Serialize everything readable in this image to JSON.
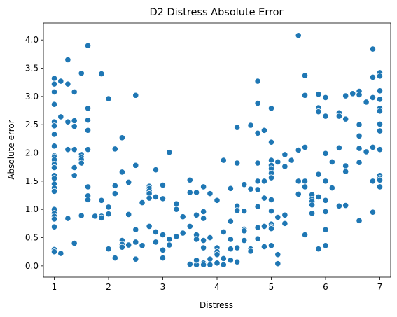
{
  "chart_data": {
    "type": "scatter",
    "title": "D2 Distress Absolute Error",
    "xlabel": "Distress",
    "ylabel": "Absolute error",
    "xlim": [
      0.8,
      7.2
    ],
    "ylim": [
      -0.2,
      4.3
    ],
    "xticks": [
      1,
      2,
      3,
      4,
      5,
      6,
      7
    ],
    "xtick_labels": [
      "1",
      "2",
      "3",
      "4",
      "5",
      "6",
      "7"
    ],
    "yticks": [
      0.0,
      0.5,
      1.0,
      1.5,
      2.0,
      2.5,
      3.0,
      3.5,
      4.0
    ],
    "ytick_labels": [
      "0.0",
      "0.5",
      "1.0",
      "1.5",
      "2.0",
      "2.5",
      "3.0",
      "3.5",
      "4.0"
    ],
    "grid": false,
    "marker_color": "#1f77b4",
    "points": [
      [
        1.0,
        3.32
      ],
      [
        1.0,
        3.22
      ],
      [
        1.0,
        3.08
      ],
      [
        1.0,
        2.86
      ],
      [
        1.0,
        2.55
      ],
      [
        1.0,
        2.48
      ],
      [
        1.0,
        2.33
      ],
      [
        1.0,
        2.12
      ],
      [
        1.0,
        1.95
      ],
      [
        1.0,
        1.93
      ],
      [
        1.0,
        1.88
      ],
      [
        1.0,
        1.8
      ],
      [
        1.0,
        1.74
      ],
      [
        1.0,
        1.6
      ],
      [
        1.0,
        1.55
      ],
      [
        1.0,
        1.45
      ],
      [
        1.0,
        1.38
      ],
      [
        1.0,
        1.32
      ],
      [
        1.0,
        1.0
      ],
      [
        1.0,
        0.93
      ],
      [
        1.0,
        0.88
      ],
      [
        1.0,
        0.83
      ],
      [
        1.0,
        0.69
      ],
      [
        1.0,
        0.29
      ],
      [
        1.0,
        0.25
      ],
      [
        1.12,
        3.27
      ],
      [
        1.12,
        2.64
      ],
      [
        1.12,
        0.22
      ],
      [
        1.25,
        3.65
      ],
      [
        1.25,
        3.22
      ],
      [
        1.25,
        2.55
      ],
      [
        1.25,
        2.06
      ],
      [
        1.25,
        0.84
      ],
      [
        1.37,
        3.08
      ],
      [
        1.37,
        2.57
      ],
      [
        1.37,
        2.47
      ],
      [
        1.37,
        2.06
      ],
      [
        1.37,
        1.74
      ],
      [
        1.37,
        1.6
      ],
      [
        1.37,
        0.4
      ],
      [
        1.5,
        3.41
      ],
      [
        1.5,
        1.97
      ],
      [
        1.5,
        1.92
      ],
      [
        1.5,
        1.88
      ],
      [
        1.5,
        1.82
      ],
      [
        1.5,
        0.89
      ],
      [
        1.62,
        3.9
      ],
      [
        1.62,
        2.79
      ],
      [
        1.62,
        2.58
      ],
      [
        1.62,
        2.4
      ],
      [
        1.62,
        2.06
      ],
      [
        1.62,
        1.4
      ],
      [
        1.62,
        1.24
      ],
      [
        1.62,
        1.17
      ],
      [
        1.75,
        0.88
      ],
      [
        1.87,
        3.4
      ],
      [
        1.87,
        1.16
      ],
      [
        1.87,
        0.88
      ],
      [
        1.87,
        0.85
      ],
      [
        2.0,
        2.96
      ],
      [
        2.0,
        1.04
      ],
      [
        2.0,
        0.92
      ],
      [
        2.0,
        0.3
      ],
      [
        2.12,
        2.07
      ],
      [
        2.12,
        1.42
      ],
      [
        2.12,
        1.28
      ],
      [
        2.12,
        0.14
      ],
      [
        2.25,
        2.27
      ],
      [
        2.25,
        1.66
      ],
      [
        2.25,
        0.45
      ],
      [
        2.25,
        0.38
      ],
      [
        2.25,
        0.33
      ],
      [
        2.37,
        1.48
      ],
      [
        2.37,
        0.91
      ],
      [
        2.37,
        0.37
      ],
      [
        2.5,
        3.02
      ],
      [
        2.5,
        1.78
      ],
      [
        2.5,
        0.64
      ],
      [
        2.5,
        0.42
      ],
      [
        2.5,
        0.12
      ],
      [
        2.62,
        1.12
      ],
      [
        2.62,
        0.36
      ],
      [
        2.75,
        1.41
      ],
      [
        2.75,
        1.37
      ],
      [
        2.75,
        1.33
      ],
      [
        2.75,
        1.28
      ],
      [
        2.75,
        1.2
      ],
      [
        2.75,
        0.7
      ],
      [
        2.87,
        1.7
      ],
      [
        2.87,
        1.22
      ],
      [
        2.87,
        0.6
      ],
      [
        2.87,
        0.42
      ],
      [
        3.0,
        1.43
      ],
      [
        3.0,
        1.19
      ],
      [
        3.0,
        0.55
      ],
      [
        3.0,
        0.28
      ],
      [
        3.0,
        0.14
      ],
      [
        3.12,
        2.01
      ],
      [
        3.12,
        0.47
      ],
      [
        3.12,
        0.37
      ],
      [
        3.25,
        1.1
      ],
      [
        3.25,
        1.0
      ],
      [
        3.25,
        0.52
      ],
      [
        3.37,
        0.87
      ],
      [
        3.37,
        0.58
      ],
      [
        3.5,
        1.52
      ],
      [
        3.5,
        1.3
      ],
      [
        3.5,
        0.7
      ],
      [
        3.5,
        0.03
      ],
      [
        3.62,
        1.3
      ],
      [
        3.62,
        0.9
      ],
      [
        3.62,
        0.55
      ],
      [
        3.62,
        0.47
      ],
      [
        3.62,
        0.02
      ],
      [
        3.62,
        0.1
      ],
      [
        3.75,
        1.4
      ],
      [
        3.75,
        0.96
      ],
      [
        3.75,
        0.84
      ],
      [
        3.75,
        0.45
      ],
      [
        3.75,
        0.32
      ],
      [
        3.75,
        0.05
      ],
      [
        3.75,
        0.02
      ],
      [
        3.87,
        1.28
      ],
      [
        3.87,
        0.5
      ],
      [
        3.87,
        0.12
      ],
      [
        3.87,
        0.02
      ],
      [
        4.0,
        1.16
      ],
      [
        4.0,
        0.32
      ],
      [
        4.0,
        0.25
      ],
      [
        4.0,
        0.2
      ],
      [
        4.0,
        0.05
      ],
      [
        4.12,
        1.87
      ],
      [
        4.12,
        0.6
      ],
      [
        4.12,
        0.13
      ],
      [
        4.12,
        0.02
      ],
      [
        4.25,
        1.37
      ],
      [
        4.25,
        0.79
      ],
      [
        4.25,
        0.47
      ],
      [
        4.25,
        0.3
      ],
      [
        4.25,
        0.1
      ],
      [
        4.37,
        2.45
      ],
      [
        4.37,
        1.82
      ],
      [
        4.37,
        1.06
      ],
      [
        4.37,
        0.98
      ],
      [
        4.37,
        0.32
      ],
      [
        4.37,
        0.07
      ],
      [
        4.5,
        1.44
      ],
      [
        4.5,
        0.97
      ],
      [
        4.5,
        0.65
      ],
      [
        4.5,
        0.62
      ],
      [
        4.5,
        0.45
      ],
      [
        4.62,
        2.49
      ],
      [
        4.62,
        1.36
      ],
      [
        4.62,
        0.3
      ],
      [
        4.62,
        0.26
      ],
      [
        4.75,
        3.27
      ],
      [
        4.75,
        2.88
      ],
      [
        4.75,
        2.35
      ],
      [
        4.75,
        1.82
      ],
      [
        4.75,
        1.5
      ],
      [
        4.75,
        1.35
      ],
      [
        4.75,
        1.05
      ],
      [
        4.75,
        0.68
      ],
      [
        4.75,
        0.48
      ],
      [
        4.87,
        2.4
      ],
      [
        4.87,
        1.5
      ],
      [
        4.87,
        1.2
      ],
      [
        4.87,
        0.7
      ],
      [
        4.87,
        0.34
      ],
      [
        5.0,
        2.79
      ],
      [
        5.0,
        2.19
      ],
      [
        5.0,
        1.87
      ],
      [
        5.0,
        1.78
      ],
      [
        5.0,
        1.72
      ],
      [
        5.0,
        1.64
      ],
      [
        5.0,
        1.56
      ],
      [
        5.0,
        1.17
      ],
      [
        5.0,
        0.97
      ],
      [
        5.0,
        0.74
      ],
      [
        5.0,
        0.69
      ],
      [
        5.0,
        0.66
      ],
      [
        5.0,
        0.36
      ],
      [
        5.12,
        1.84
      ],
      [
        5.12,
        0.86
      ],
      [
        5.12,
        0.2
      ],
      [
        5.12,
        0.04
      ],
      [
        5.25,
        1.97
      ],
      [
        5.25,
        1.76
      ],
      [
        5.25,
        0.9
      ],
      [
        5.25,
        0.75
      ],
      [
        5.37,
        1.87
      ],
      [
        5.5,
        4.08
      ],
      [
        5.5,
        2.05
      ],
      [
        5.5,
        1.5
      ],
      [
        5.5,
        1.27
      ],
      [
        5.62,
        3.37
      ],
      [
        5.62,
        3.02
      ],
      [
        5.62,
        2.1
      ],
      [
        5.62,
        1.5
      ],
      [
        5.62,
        1.4
      ],
      [
        5.62,
        0.55
      ],
      [
        5.75,
        1.26
      ],
      [
        5.75,
        1.18
      ],
      [
        5.75,
        1.14
      ],
      [
        5.75,
        1.08
      ],
      [
        5.75,
        0.93
      ],
      [
        5.87,
        3.04
      ],
      [
        5.87,
        2.8
      ],
      [
        5.87,
        2.73
      ],
      [
        5.87,
        1.62
      ],
      [
        5.87,
        1.22
      ],
      [
        5.87,
        0.3
      ],
      [
        6.0,
        2.98
      ],
      [
        6.0,
        2.65
      ],
      [
        6.0,
        1.99
      ],
      [
        6.0,
        1.5
      ],
      [
        6.0,
        1.16
      ],
      [
        6.0,
        0.96
      ],
      [
        6.0,
        0.64
      ],
      [
        6.0,
        0.36
      ],
      [
        6.12,
        1.84
      ],
      [
        6.12,
        1.38
      ],
      [
        6.25,
        2.71
      ],
      [
        6.25,
        2.65
      ],
      [
        6.25,
        2.09
      ],
      [
        6.25,
        1.06
      ],
      [
        6.37,
        3.01
      ],
      [
        6.37,
        2.6
      ],
      [
        6.37,
        1.77
      ],
      [
        6.37,
        1.67
      ],
      [
        6.37,
        1.07
      ],
      [
        6.5,
        3.05
      ],
      [
        6.62,
        3.09
      ],
      [
        6.62,
        3.03
      ],
      [
        6.62,
        2.5
      ],
      [
        6.62,
        2.3
      ],
      [
        6.62,
        2.08
      ],
      [
        6.62,
        1.83
      ],
      [
        6.62,
        0.8
      ],
      [
        6.75,
        2.9
      ],
      [
        6.75,
        2.02
      ],
      [
        6.87,
        3.84
      ],
      [
        6.87,
        3.34
      ],
      [
        6.87,
        2.98
      ],
      [
        6.87,
        2.1
      ],
      [
        6.87,
        1.5
      ],
      [
        6.87,
        0.95
      ],
      [
        7.0,
        3.42
      ],
      [
        7.0,
        3.36
      ],
      [
        7.0,
        3.1
      ],
      [
        7.0,
        2.95
      ],
      [
        7.0,
        2.79
      ],
      [
        7.0,
        2.74
      ],
      [
        7.0,
        2.51
      ],
      [
        7.0,
        2.39
      ],
      [
        7.0,
        2.06
      ],
      [
        7.0,
        1.6
      ],
      [
        7.0,
        1.55
      ],
      [
        7.0,
        1.52
      ],
      [
        7.0,
        1.4
      ]
    ]
  }
}
